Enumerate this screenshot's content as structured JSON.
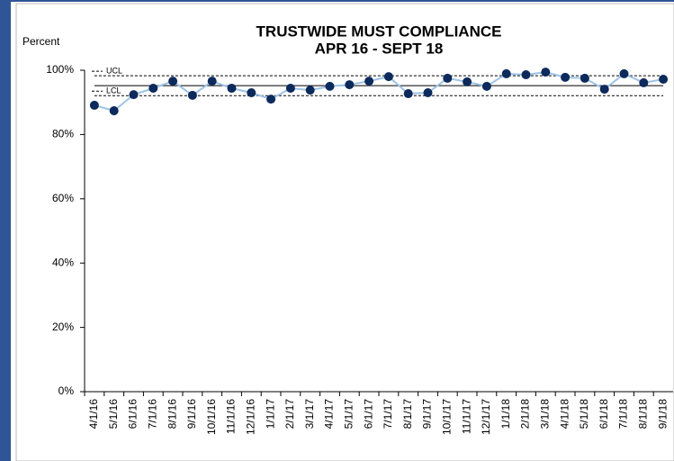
{
  "chart_data": {
    "type": "line",
    "title": "TRUSTWIDE MUST COMPLIANCE",
    "subtitle": "APR 16 - SEPT 18",
    "ylabel": "Percent",
    "categories": [
      "4/1/16",
      "5/1/16",
      "6/1/16",
      "7/1/16",
      "8/1/16",
      "9/1/16",
      "10/1/16",
      "11/1/16",
      "12/1/16",
      "1/1/17",
      "2/1/17",
      "3/1/17",
      "4/1/17",
      "5/1/17",
      "6/1/17",
      "7/1/17",
      "8/1/17",
      "9/1/17",
      "10/1/17",
      "11/1/17",
      "12/1/17",
      "1/1/18",
      "2/1/18",
      "3/1/18",
      "4/1/18",
      "5/1/18",
      "6/1/18",
      "7/1/18",
      "8/1/18",
      "9/1/18"
    ],
    "series": [
      {
        "color": "#9dc3e6",
        "marker_color": "#0d2a5c",
        "values": [
          89.1,
          87.4,
          92.4,
          94.4,
          96.6,
          92.2,
          96.6,
          94.4,
          93.0,
          91.0,
          94.4,
          93.8,
          95.0,
          95.5,
          96.6,
          98.0,
          92.7,
          93.0,
          97.5,
          96.4,
          95.0,
          98.9,
          98.6,
          99.4,
          97.8,
          97.5,
          94.1,
          98.9,
          96.1,
          97.2
        ]
      },
      {
        "color": "#000000",
        "values": [
          95.2,
          95.2,
          95.2,
          95.2,
          95.2,
          95.2,
          95.2,
          95.2,
          95.2,
          95.2,
          95.2,
          95.2,
          95.2,
          95.2,
          95.2,
          95.2,
          95.2,
          95.2,
          95.2,
          95.2,
          95.2,
          95.2,
          95.2,
          95.2,
          95.2,
          95.2,
          95.2,
          95.2,
          95.2,
          95.2
        ]
      },
      {
        "name": "UCL",
        "color": "#000000",
        "dashed": true,
        "values": [
          98.3,
          98.3,
          98.3,
          98.3,
          98.3,
          98.3,
          98.3,
          98.3,
          98.3,
          98.3,
          98.3,
          98.3,
          98.3,
          98.3,
          98.3,
          98.3,
          98.3,
          98.3,
          98.3,
          98.3,
          98.3,
          98.3,
          98.3,
          98.3,
          98.3,
          98.3,
          98.3,
          98.3,
          98.3,
          98.3
        ]
      },
      {
        "name": "LCL",
        "color": "#000000",
        "dashed": true,
        "values": [
          92.1,
          92.1,
          92.1,
          92.1,
          92.1,
          92.1,
          92.1,
          92.1,
          92.1,
          92.1,
          92.1,
          92.1,
          92.1,
          92.1,
          92.1,
          92.1,
          92.1,
          92.1,
          92.1,
          92.1,
          92.1,
          92.1,
          92.1,
          92.1,
          92.1,
          92.1,
          92.1,
          92.1,
          92.1,
          92.1
        ]
      }
    ],
    "ylim": [
      0,
      100
    ],
    "yticks": [
      {
        "value": 0,
        "label": "0%"
      },
      {
        "value": 20,
        "label": "20%"
      },
      {
        "value": 40,
        "label": "40%"
      },
      {
        "value": 60,
        "label": "60%"
      },
      {
        "value": 80,
        "label": "80%"
      },
      {
        "value": 100,
        "label": "100%"
      }
    ]
  }
}
